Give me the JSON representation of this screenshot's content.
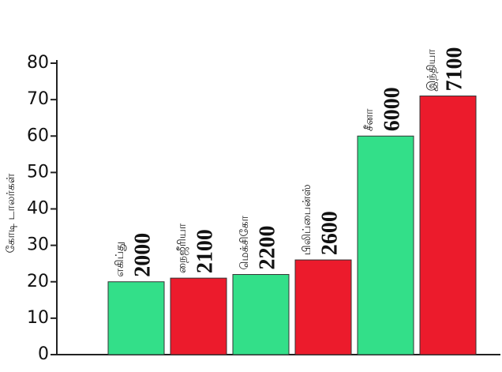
{
  "chart_data": {
    "type": "bar",
    "y_label": "கோடி டாலர்கள்",
    "categories": [
      "எகிப்து",
      "நைஜீரியா",
      "மெக்சிகோ",
      "பிலிப்பைன்ஸ்",
      "சீனா",
      "இந்தியா"
    ],
    "values": [
      20,
      21,
      22,
      26,
      60,
      71
    ],
    "annotations": [
      "2000",
      "2100",
      "2200",
      "2600",
      "6000",
      "7100"
    ],
    "colors": [
      "#33df89",
      "#ec1b2c",
      "#33df89",
      "#ec1b2c",
      "#33df89",
      "#ec1b2c"
    ],
    "ylim": [
      0,
      80
    ],
    "yticks": [
      0,
      10,
      20,
      30,
      40,
      50,
      60,
      70,
      80
    ]
  }
}
